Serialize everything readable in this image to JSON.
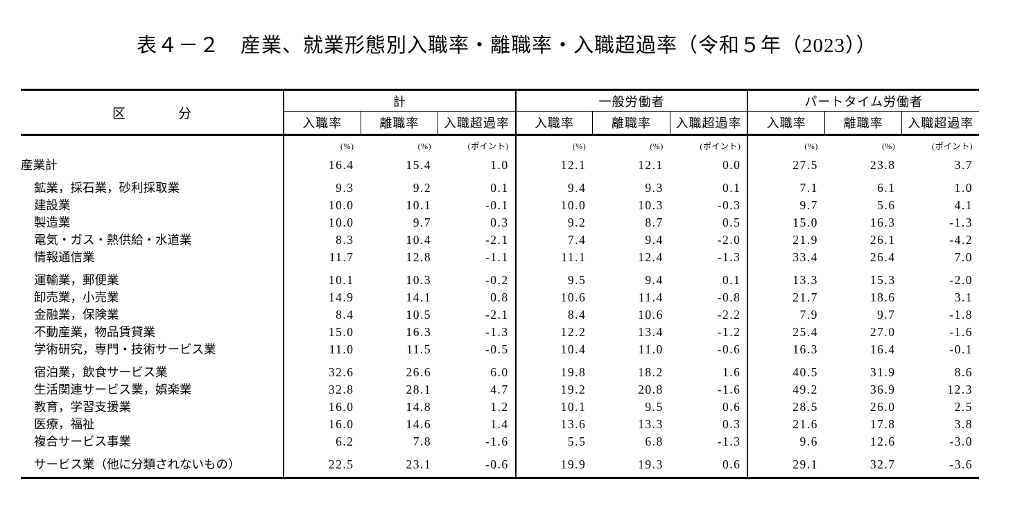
{
  "title": "表４－２　産業、就業形態別入職率・離職率・入職超過率（令和５年（2023））",
  "table": {
    "corner_label": "区　　　　分",
    "groups": [
      {
        "label": "計"
      },
      {
        "label": "一般労働者"
      },
      {
        "label": "パートタイム労働者"
      }
    ],
    "sub_columns": [
      "入職率",
      "離職率",
      "入職超過率"
    ],
    "units": [
      "(%)",
      "(%)",
      "(ポイント)"
    ],
    "rows": [
      {
        "label": "産業計",
        "indent": 0,
        "group_start": false,
        "values": [
          "16.4",
          "15.4",
          "1.0",
          "12.1",
          "12.1",
          "0.0",
          "27.5",
          "23.8",
          "3.7"
        ]
      },
      {
        "label": "鉱業，採石業，砂利採取業",
        "indent": 1,
        "group_start": true,
        "values": [
          "9.3",
          "9.2",
          "0.1",
          "9.4",
          "9.3",
          "0.1",
          "7.1",
          "6.1",
          "1.0"
        ]
      },
      {
        "label": "建設業",
        "indent": 1,
        "group_start": false,
        "values": [
          "10.0",
          "10.1",
          "-0.1",
          "10.0",
          "10.3",
          "-0.3",
          "9.7",
          "5.6",
          "4.1"
        ]
      },
      {
        "label": "製造業",
        "indent": 1,
        "group_start": false,
        "values": [
          "10.0",
          "9.7",
          "0.3",
          "9.2",
          "8.7",
          "0.5",
          "15.0",
          "16.3",
          "-1.3"
        ]
      },
      {
        "label": "電気・ガス・熱供給・水道業",
        "indent": 1,
        "group_start": false,
        "values": [
          "8.3",
          "10.4",
          "-2.1",
          "7.4",
          "9.4",
          "-2.0",
          "21.9",
          "26.1",
          "-4.2"
        ]
      },
      {
        "label": "情報通信業",
        "indent": 1,
        "group_start": false,
        "values": [
          "11.7",
          "12.8",
          "-1.1",
          "11.1",
          "12.4",
          "-1.3",
          "33.4",
          "26.4",
          "7.0"
        ]
      },
      {
        "label": "運輸業，郵便業",
        "indent": 1,
        "group_start": true,
        "values": [
          "10.1",
          "10.3",
          "-0.2",
          "9.5",
          "9.4",
          "0.1",
          "13.3",
          "15.3",
          "-2.0"
        ]
      },
      {
        "label": "卸売業，小売業",
        "indent": 1,
        "group_start": false,
        "values": [
          "14.9",
          "14.1",
          "0.8",
          "10.6",
          "11.4",
          "-0.8",
          "21.7",
          "18.6",
          "3.1"
        ]
      },
      {
        "label": "金融業，保険業",
        "indent": 1,
        "group_start": false,
        "values": [
          "8.4",
          "10.5",
          "-2.1",
          "8.4",
          "10.6",
          "-2.2",
          "7.9",
          "9.7",
          "-1.8"
        ]
      },
      {
        "label": "不動産業，物品賃貸業",
        "indent": 1,
        "group_start": false,
        "values": [
          "15.0",
          "16.3",
          "-1.3",
          "12.2",
          "13.4",
          "-1.2",
          "25.4",
          "27.0",
          "-1.6"
        ]
      },
      {
        "label": "学術研究，専門・技術サービス業",
        "indent": 1,
        "group_start": false,
        "values": [
          "11.0",
          "11.5",
          "-0.5",
          "10.4",
          "11.0",
          "-0.6",
          "16.3",
          "16.4",
          "-0.1"
        ]
      },
      {
        "label": "宿泊業，飲食サービス業",
        "indent": 1,
        "group_start": true,
        "values": [
          "32.6",
          "26.6",
          "6.0",
          "19.8",
          "18.2",
          "1.6",
          "40.5",
          "31.9",
          "8.6"
        ]
      },
      {
        "label": "生活関連サービス業，娯楽業",
        "indent": 1,
        "group_start": false,
        "values": [
          "32.8",
          "28.1",
          "4.7",
          "19.2",
          "20.8",
          "-1.6",
          "49.2",
          "36.9",
          "12.3"
        ]
      },
      {
        "label": "教育，学習支援業",
        "indent": 1,
        "group_start": false,
        "values": [
          "16.0",
          "14.8",
          "1.2",
          "10.1",
          "9.5",
          "0.6",
          "28.5",
          "26.0",
          "2.5"
        ]
      },
      {
        "label": "医療，福祉",
        "indent": 1,
        "group_start": false,
        "values": [
          "16.0",
          "14.6",
          "1.4",
          "13.6",
          "13.3",
          "0.3",
          "21.6",
          "17.8",
          "3.8"
        ]
      },
      {
        "label": "複合サービス事業",
        "indent": 1,
        "group_start": false,
        "values": [
          "6.2",
          "7.8",
          "-1.6",
          "5.5",
          "6.8",
          "-1.3",
          "9.6",
          "12.6",
          "-3.0"
        ]
      },
      {
        "label": "サービス業（他に分類されないもの）",
        "indent": 1,
        "group_start": true,
        "values": [
          "22.5",
          "23.1",
          "-0.6",
          "19.9",
          "19.3",
          "0.6",
          "29.1",
          "32.7",
          "-3.6"
        ]
      }
    ]
  }
}
